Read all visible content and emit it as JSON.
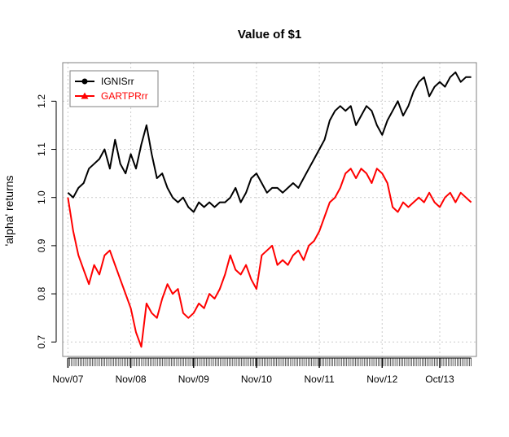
{
  "chart_data": {
    "type": "line",
    "title": "Value of $1",
    "xlabel": "",
    "ylabel": "'alpha' returns",
    "ylim": [
      0.67,
      1.28
    ],
    "y_ticks": [
      0.7,
      0.8,
      0.9,
      1.0,
      1.1,
      1.2
    ],
    "y_tick_labels": [
      "0.7",
      "0.8",
      "0.9",
      "1.0",
      "1.1",
      "1.2"
    ],
    "x_ticks": [
      "Nov/07",
      "Nov/08",
      "Nov/09",
      "Nov/10",
      "Nov/11",
      "Nov/12",
      "Oct/13"
    ],
    "x_tick_positions": [
      0,
      12,
      24,
      36,
      48,
      60,
      71
    ],
    "xlim": [
      -1,
      78
    ],
    "grid": true,
    "legend_position": "top-left",
    "series": [
      {
        "name": "IGNISrr",
        "color": "#000000",
        "marker": "circle",
        "x": [
          0,
          1,
          2,
          3,
          4,
          5,
          6,
          7,
          8,
          9,
          10,
          11,
          12,
          13,
          14,
          15,
          16,
          17,
          18,
          19,
          20,
          21,
          22,
          23,
          24,
          25,
          26,
          27,
          28,
          29,
          30,
          31,
          32,
          33,
          34,
          35,
          36,
          37,
          38,
          39,
          40,
          41,
          42,
          43,
          44,
          45,
          46,
          47,
          48,
          49,
          50,
          51,
          52,
          53,
          54,
          55,
          56,
          57,
          58,
          59,
          60,
          61,
          62,
          63,
          64,
          65,
          66,
          67,
          68,
          69,
          70,
          71,
          72,
          73,
          74,
          75,
          76,
          77
        ],
        "values": [
          1.01,
          1.0,
          1.02,
          1.03,
          1.06,
          1.07,
          1.08,
          1.1,
          1.06,
          1.12,
          1.07,
          1.05,
          1.09,
          1.06,
          1.11,
          1.15,
          1.09,
          1.04,
          1.05,
          1.02,
          1.0,
          0.99,
          1.0,
          0.98,
          0.97,
          0.99,
          0.98,
          0.99,
          0.98,
          0.99,
          0.99,
          1.0,
          1.02,
          0.99,
          1.01,
          1.04,
          1.05,
          1.03,
          1.01,
          1.02,
          1.02,
          1.01,
          1.02,
          1.03,
          1.02,
          1.04,
          1.06,
          1.08,
          1.1,
          1.12,
          1.16,
          1.18,
          1.19,
          1.18,
          1.19,
          1.15,
          1.17,
          1.19,
          1.18,
          1.15,
          1.13,
          1.16,
          1.18,
          1.2,
          1.17,
          1.19,
          1.22,
          1.24,
          1.25,
          1.21,
          1.23,
          1.24,
          1.23,
          1.25,
          1.26,
          1.24,
          1.25,
          1.25
        ]
      },
      {
        "name": "GARTPRrr",
        "color": "#ff0000",
        "marker": "triangle",
        "x": [
          0,
          1,
          2,
          3,
          4,
          5,
          6,
          7,
          8,
          9,
          10,
          11,
          12,
          13,
          14,
          15,
          16,
          17,
          18,
          19,
          20,
          21,
          22,
          23,
          24,
          25,
          26,
          27,
          28,
          29,
          30,
          31,
          32,
          33,
          34,
          35,
          36,
          37,
          38,
          39,
          40,
          41,
          42,
          43,
          44,
          45,
          46,
          47,
          48,
          49,
          50,
          51,
          52,
          53,
          54,
          55,
          56,
          57,
          58,
          59,
          60,
          61,
          62,
          63,
          64,
          65,
          66,
          67,
          68,
          69,
          70,
          71,
          72,
          73,
          74,
          75,
          76,
          77
        ],
        "values": [
          1.0,
          0.93,
          0.88,
          0.85,
          0.82,
          0.86,
          0.84,
          0.88,
          0.89,
          0.86,
          0.83,
          0.8,
          0.77,
          0.72,
          0.69,
          0.78,
          0.76,
          0.75,
          0.79,
          0.82,
          0.8,
          0.81,
          0.76,
          0.75,
          0.76,
          0.78,
          0.77,
          0.8,
          0.79,
          0.81,
          0.84,
          0.88,
          0.85,
          0.84,
          0.86,
          0.83,
          0.81,
          0.88,
          0.89,
          0.9,
          0.86,
          0.87,
          0.86,
          0.88,
          0.89,
          0.87,
          0.9,
          0.91,
          0.93,
          0.96,
          0.99,
          1.0,
          1.02,
          1.05,
          1.06,
          1.04,
          1.06,
          1.05,
          1.03,
          1.06,
          1.05,
          1.03,
          0.98,
          0.97,
          0.99,
          0.98,
          0.99,
          1.0,
          0.99,
          1.01,
          0.99,
          0.98,
          1.0,
          1.01,
          0.99,
          1.01,
          1.0,
          0.99
        ]
      }
    ]
  },
  "colors": {
    "grid": "#cccccc",
    "frame": "#808080",
    "background": "#ffffff"
  }
}
